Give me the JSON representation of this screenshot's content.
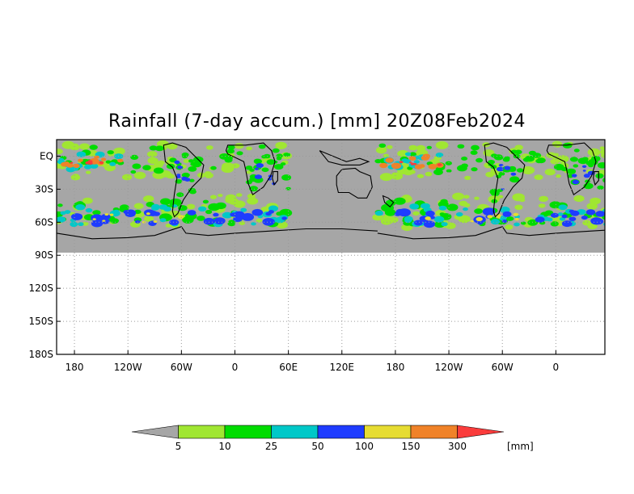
{
  "title": "Rainfall (7-day accum.) [mm] 20Z08Feb2024",
  "chart_data": {
    "type": "heatmap",
    "title": "Rainfall (7-day accum.) [mm] 20Z08Feb2024",
    "projection": "cylindrical",
    "x_ticks": [
      "180",
      "120W",
      "60W",
      "0",
      "60E",
      "120E",
      "180",
      "120W",
      "60W",
      "0"
    ],
    "x_tick_values": [
      180,
      240,
      300,
      360,
      420,
      480,
      540,
      600,
      660,
      720
    ],
    "y_ticks": [
      "EQ",
      "30S",
      "60S",
      "90S",
      "120S",
      "150S",
      "180S"
    ],
    "y_tick_values": [
      0,
      -30,
      -60,
      -90,
      -120,
      -150,
      -180
    ],
    "xlim": [
      160,
      775
    ],
    "ylim": [
      -180,
      15
    ],
    "data_lat_range": [
      -90,
      15
    ],
    "no_data_color": "#a6a6a6",
    "gridlines": "dotted",
    "colorbar": {
      "unit": "[mm]",
      "levels": [
        "5",
        "10",
        "25",
        "50",
        "100",
        "150",
        "300"
      ],
      "colors": [
        "#a6a6a6",
        "#a0e632",
        "#00dc00",
        "#00c8c8",
        "#1e3cff",
        "#e6dc32",
        "#f08228",
        "#fa3c3c"
      ]
    }
  }
}
